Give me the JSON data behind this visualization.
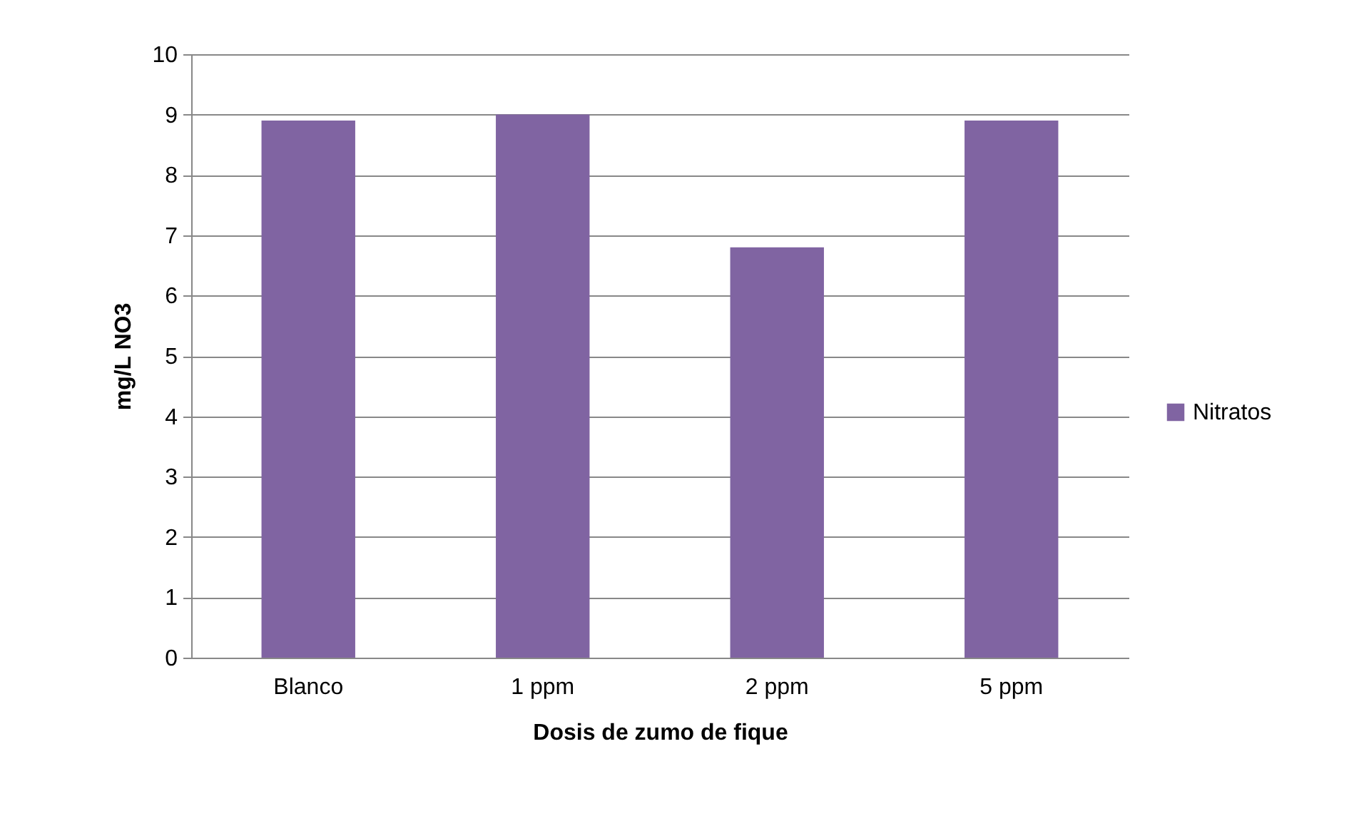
{
  "chart_data": {
    "type": "bar",
    "xlabel": "Dosis de zumo de fique",
    "ylabel": "mg/L NO3",
    "categories": [
      "Blanco",
      "1 ppm",
      "2 ppm",
      "5 ppm"
    ],
    "series": [
      {
        "name": "Nitratos",
        "color": "#8064a2",
        "values": [
          8.9,
          9.0,
          6.8,
          8.9
        ]
      }
    ],
    "ylim": [
      0,
      10
    ],
    "yticks": [
      0,
      1,
      2,
      3,
      4,
      5,
      6,
      7,
      8,
      9,
      10
    ],
    "grid": "y",
    "legend": "right"
  }
}
